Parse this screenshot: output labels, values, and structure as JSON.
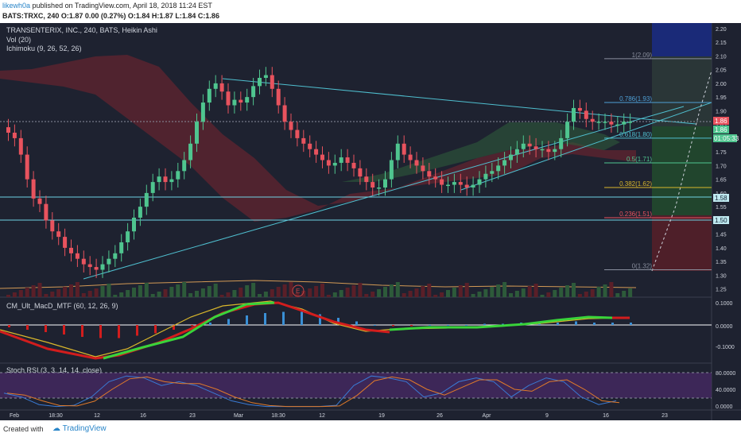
{
  "header": {
    "author": "likewh0a",
    "published": "published on TradingView.com, April 18, 2018 11:24 EST",
    "symbol_line": "BATS:TRXC, 240 O:1.87 0.00 (0.27%) O:1.84 H:1.87 L:1.84 C:1.86"
  },
  "legend": {
    "title": "TRANSENTERIX, INC., 240, BATS, Heikin Ashi",
    "vol": "Vol (20)",
    "ichimoku": "Ichimoku (9, 26, 52, 26)",
    "macd": "CM_Ult_MacD_MTF (60, 12, 26, 9)",
    "stoch": "Stoch RSI (3, 3, 14, 14, close)",
    "event_marker": "E"
  },
  "price_axis": {
    "ticks": [
      "2.20",
      "2.15",
      "2.10",
      "2.05",
      "2.00",
      "1.95",
      "1.90",
      "1.85",
      "1.80",
      "1.75",
      "1.70",
      "1.65",
      "1.60",
      "1.55",
      "1.50",
      "1.45",
      "1.40",
      "1.35",
      "1.30",
      "1.25"
    ],
    "badges": {
      "last": "1.86",
      "alt": "1.86",
      "countdown": "01:05:33",
      "level1": "1.58",
      "level2": "1.50"
    }
  },
  "fib_levels": [
    "1(2.09)",
    "0.786(1.93)",
    "0.618(1.80)",
    "0.5(1.71)",
    "0.382(1.62)",
    "0.236(1.51)",
    "0(1.32)"
  ],
  "macd_axis": [
    "0.1000",
    "0.0000",
    "-0.1000"
  ],
  "stoch_axis": [
    "80.0000",
    "40.0000",
    "0.0000"
  ],
  "time_axis": [
    "Feb",
    "18:30",
    "12",
    "16",
    "23",
    "Mar",
    "18:30",
    "12",
    "19",
    "26",
    "Apr",
    "9",
    "16",
    "23"
  ],
  "footer": {
    "created": "Created with",
    "brand": "TradingView"
  },
  "colors": {
    "bg": "#1e2230",
    "bull": "#4fc58f",
    "bear": "#e8535e",
    "cloud_bear": "#7a2530",
    "cloud_bull": "#2d5a3a",
    "macd_green": "#39d43a",
    "macd_red": "#d21d1d",
    "signal": "#d9b72b",
    "stoch_k": "#3a7bd5",
    "stoch_d": "#e07a2a",
    "stoch_band": "#4a2a6a"
  },
  "chart_data": {
    "type": "candlestick",
    "title": "TRANSENTERIX, INC., 240, BATS, Heikin Ashi",
    "ylim": [
      1.22,
      2.22
    ],
    "closes": [
      1.82,
      1.8,
      1.74,
      1.65,
      1.58,
      1.56,
      1.5,
      1.46,
      1.44,
      1.4,
      1.38,
      1.36,
      1.34,
      1.33,
      1.32,
      1.34,
      1.36,
      1.38,
      1.42,
      1.46,
      1.51,
      1.55,
      1.6,
      1.64,
      1.66,
      1.64,
      1.65,
      1.68,
      1.72,
      1.78,
      1.86,
      1.93,
      1.98,
      2.0,
      1.97,
      1.92,
      1.94,
      1.93,
      1.95,
      1.99,
      2.02,
      2.03,
      1.98,
      1.92,
      1.86,
      1.83,
      1.8,
      1.78,
      1.76,
      1.74,
      1.72,
      1.7,
      1.71,
      1.73,
      1.71,
      1.69,
      1.66,
      1.64,
      1.62,
      1.62,
      1.65,
      1.72,
      1.78,
      1.74,
      1.72,
      1.7,
      1.68,
      1.66,
      1.65,
      1.63,
      1.63,
      1.64,
      1.63,
      1.62,
      1.63,
      1.65,
      1.67,
      1.68,
      1.7,
      1.72,
      1.74,
      1.76,
      1.78,
      1.77,
      1.76,
      1.76,
      1.75,
      1.76,
      1.8,
      1.86,
      1.91,
      1.9,
      1.87,
      1.86,
      1.86,
      1.86,
      1.85,
      1.85,
      1.86,
      1.86
    ],
    "macd": [
      -0.02,
      -0.04,
      -0.06,
      -0.08,
      -0.1,
      -0.11,
      -0.11,
      -0.09,
      -0.07,
      -0.04,
      -0.01,
      0.02,
      0.05,
      0.08,
      0.1,
      0.11,
      0.11,
      0.09,
      0.06,
      0.03,
      0.0,
      -0.01,
      -0.01,
      0.0,
      0.0,
      0.0,
      0.01,
      0.01,
      0.02,
      0.02,
      0.02,
      0.03,
      0.02,
      0.02,
      0.02
    ],
    "stoch_k": [
      40,
      30,
      10,
      5,
      8,
      30,
      70,
      85,
      80,
      60,
      70,
      60,
      40,
      20,
      10,
      5,
      5,
      5,
      5,
      8,
      60,
      85,
      80,
      70,
      30,
      40,
      70,
      80,
      70,
      30,
      60,
      80,
      70,
      30,
      10,
      20
    ]
  }
}
